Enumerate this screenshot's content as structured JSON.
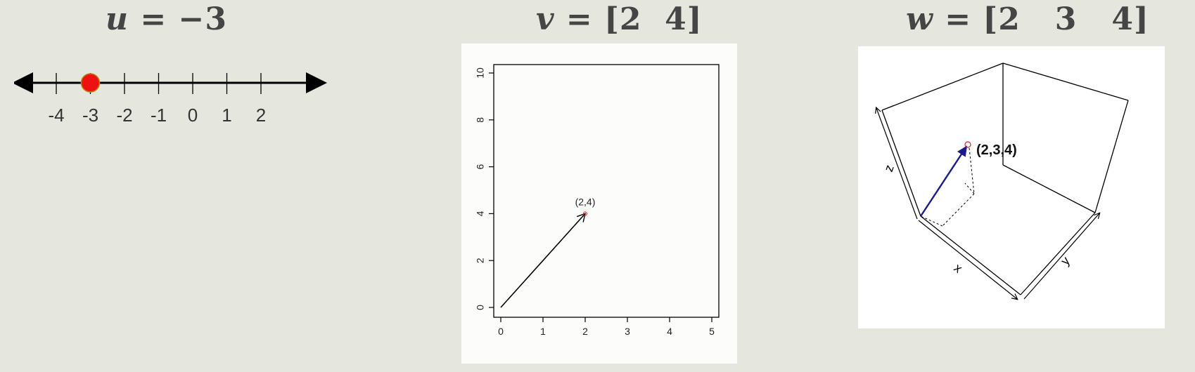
{
  "equations": {
    "u": {
      "var": "u",
      "eq": " = ",
      "value": "−3"
    },
    "v": {
      "var": "v",
      "eq": " = ",
      "value": "[2  4]"
    },
    "w": {
      "var": "w",
      "eq": " = ",
      "value": "[2   3   4]"
    }
  },
  "number_line": {
    "ticks": [
      "-4",
      "-3",
      "-2",
      "-1",
      "0",
      "1",
      "2"
    ],
    "point": -3,
    "point_color": "#ee1111"
  },
  "chart_data": [
    {
      "type": "scatter",
      "x_ticks": [
        "0",
        "1",
        "2",
        "3",
        "4",
        "5"
      ],
      "y_ticks": [
        "0",
        "2",
        "4",
        "6",
        "8",
        "10"
      ],
      "xlim": [
        0,
        5
      ],
      "ylim": [
        0,
        10
      ],
      "vector": {
        "from": [
          0,
          0
        ],
        "to": [
          2,
          4
        ]
      },
      "point_label": "(2,4)"
    },
    {
      "type": "scatter",
      "axis_labels": {
        "x": "x",
        "y": "y",
        "z": "z"
      },
      "vector": {
        "from": [
          0,
          0,
          0
        ],
        "to": [
          2,
          3,
          4
        ]
      },
      "point_label": "(2,3,4)",
      "vector_color": "#1a1a8c"
    }
  ]
}
